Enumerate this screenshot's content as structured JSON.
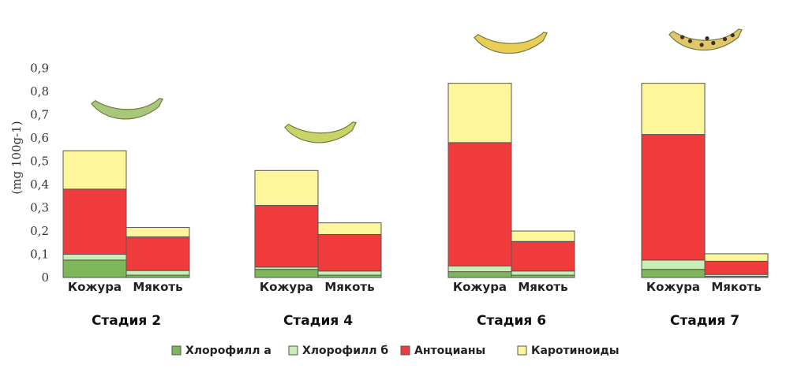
{
  "chart_data": {
    "type": "bar",
    "stacked": true,
    "ylabel": "(mg 100g-1)",
    "ylim": [
      0,
      0.9
    ],
    "yticks": [
      "0",
      "0,1",
      "0,2",
      "0,3",
      "0,4",
      "0,5",
      "0,6",
      "0,7",
      "0,8",
      "0,9"
    ],
    "grid": false,
    "legend_position": "bottom",
    "groups": [
      {
        "label": "Стадия 2",
        "bars": [
          {
            "label": "Кожура",
            "values": [
              0.075,
              0.025,
              0.28,
              0.165
            ]
          },
          {
            "label": "Мякоть",
            "values": [
              0.01,
              0.02,
              0.145,
              0.04
            ]
          }
        ]
      },
      {
        "label": "Стадия 4",
        "bars": [
          {
            "label": "Кожура",
            "values": [
              0.035,
              0.01,
              0.265,
              0.15
            ]
          },
          {
            "label": "Мякоть",
            "values": [
              0.01,
              0.018,
              0.157,
              0.05
            ]
          }
        ]
      },
      {
        "label": "Стадия 6",
        "bars": [
          {
            "label": "Кожура",
            "values": [
              0.025,
              0.025,
              0.53,
              0.255
            ]
          },
          {
            "label": "Мякоть",
            "values": [
              0.01,
              0.018,
              0.127,
              0.045
            ]
          }
        ]
      },
      {
        "label": "Стадия 7",
        "bars": [
          {
            "label": "Кожура",
            "values": [
              0.035,
              0.04,
              0.54,
              0.22
            ]
          },
          {
            "label": "Мякоть",
            "values": [
              0.005,
              0.008,
              0.057,
              0.032
            ]
          }
        ]
      }
    ],
    "series": [
      {
        "name": "Хлорофилл а",
        "color": "#7db759"
      },
      {
        "name": "Хлорофилл б",
        "color": "#c9eeb4"
      },
      {
        "name": "Антоцианы",
        "color": "#ef3b3b"
      },
      {
        "name": "Каротиноиды",
        "color": "#fdf69a"
      }
    ],
    "banana_icons": [
      "green-banana-icon",
      "green-yellow-banana-icon",
      "yellow-banana-icon",
      "spotted-banana-icon"
    ]
  }
}
